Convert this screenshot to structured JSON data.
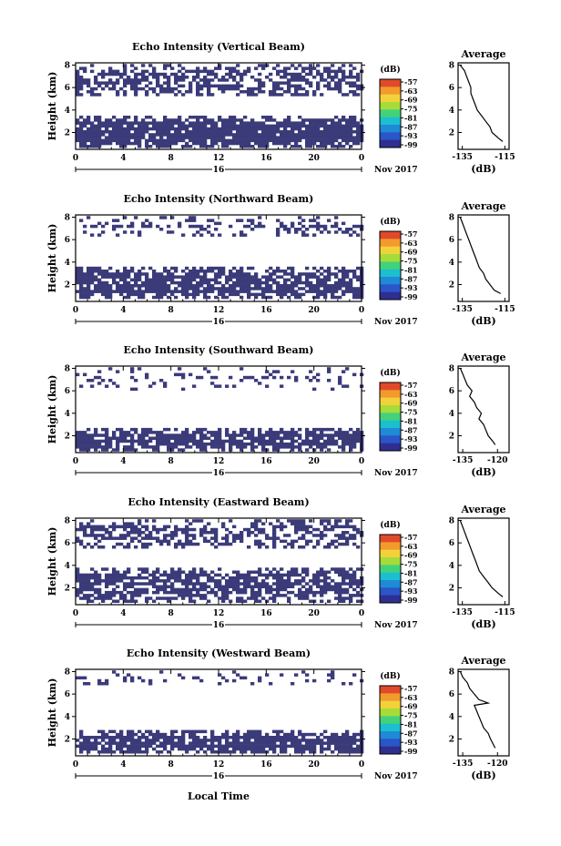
{
  "colors": {
    "echo": "#3b3b7a",
    "colorbar": [
      "#2e2f8f",
      "#2b55c8",
      "#1f8ad6",
      "#1cbfd0",
      "#43d27a",
      "#a6dc3a",
      "#f2d23a",
      "#f39a2c",
      "#e04a2a"
    ]
  },
  "x_label": "Local Time",
  "chart_data": [
    {
      "type": "heatmap",
      "title": "Echo Intensity (Vertical Beam)",
      "ylabel": "Height (km)",
      "x_ticks": [
        "0",
        "4",
        "8",
        "12",
        "16",
        "20",
        "0"
      ],
      "y_ticks": [
        "2",
        "4",
        "6",
        "8"
      ],
      "xlim": [
        0,
        24
      ],
      "ylim": [
        0.5,
        8.2
      ],
      "date_label": "16",
      "month_label": "Nov 2017",
      "colorbar_unit": "(dB)",
      "colorbar_ticks": [
        "-57",
        "-63",
        "-69",
        "-75",
        "-81",
        "-87",
        "-93",
        "-99"
      ],
      "echo_layers": [
        {
          "bottom": 0.8,
          "top": 3.5,
          "density": 0.9
        },
        {
          "bottom": 5.3,
          "top": 8.1,
          "density": 0.55
        }
      ],
      "average": {
        "title": "Average",
        "xlabel": "(dB)",
        "xticks": [
          "-135",
          "-115"
        ],
        "xlim": [
          -137,
          -113
        ],
        "yticks": [
          "2",
          "4",
          "6",
          "8"
        ],
        "ylim": [
          0.5,
          8.2
        ],
        "x": [
          -136,
          -134,
          -133,
          -132,
          -131,
          -131,
          -130,
          -129,
          -128,
          -126,
          -124,
          -122,
          -121,
          -118,
          -116
        ],
        "y": [
          8.0,
          7.5,
          7.0,
          6.5,
          6.0,
          5.5,
          5.0,
          4.5,
          4.0,
          3.5,
          3.0,
          2.5,
          2.0,
          1.5,
          1.2
        ]
      }
    },
    {
      "type": "heatmap",
      "title": "Echo Intensity (Northward Beam)",
      "ylabel": "Height (km)",
      "x_ticks": [
        "0",
        "4",
        "8",
        "12",
        "16",
        "20",
        "0"
      ],
      "y_ticks": [
        "2",
        "4",
        "6",
        "8"
      ],
      "xlim": [
        0,
        24
      ],
      "ylim": [
        0.5,
        8.2
      ],
      "date_label": "16",
      "month_label": "Nov 2017",
      "colorbar_unit": "(dB)",
      "colorbar_ticks": [
        "-57",
        "-63",
        "-69",
        "-75",
        "-81",
        "-87",
        "-93",
        "-99"
      ],
      "echo_layers": [
        {
          "bottom": 0.8,
          "top": 3.6,
          "density": 0.8
        },
        {
          "bottom": 6.3,
          "top": 8.1,
          "density": 0.3
        }
      ],
      "average": {
        "title": "Average",
        "xlabel": "(dB)",
        "xticks": [
          "-135",
          "-115"
        ],
        "xlim": [
          -137,
          -113
        ],
        "yticks": [
          "2",
          "4",
          "6",
          "8"
        ],
        "ylim": [
          0.5,
          8.2
        ],
        "x": [
          -136,
          -135,
          -134,
          -133,
          -132,
          -131,
          -130,
          -129,
          -128,
          -127,
          -125,
          -124,
          -122,
          -120,
          -117
        ],
        "y": [
          8.0,
          7.5,
          7.0,
          6.5,
          6.0,
          5.5,
          5.0,
          4.5,
          4.0,
          3.5,
          3.0,
          2.5,
          2.0,
          1.5,
          1.2
        ]
      }
    },
    {
      "type": "heatmap",
      "title": "Echo Intensity (Southward Beam)",
      "ylabel": "Height (km)",
      "x_ticks": [
        "0",
        "4",
        "8",
        "12",
        "16",
        "20",
        "0"
      ],
      "y_ticks": [
        "2",
        "4",
        "6",
        "8"
      ],
      "xlim": [
        0,
        24
      ],
      "ylim": [
        0.5,
        8.2
      ],
      "date_label": "16",
      "month_label": "Nov 2017",
      "colorbar_unit": "(dB)",
      "colorbar_ticks": [
        "-57",
        "-63",
        "-69",
        "-75",
        "-81",
        "-87",
        "-93",
        "-99"
      ],
      "echo_layers": [
        {
          "bottom": 0.8,
          "top": 2.7,
          "density": 0.85
        },
        {
          "bottom": 6.0,
          "top": 8.1,
          "density": 0.15
        }
      ],
      "average": {
        "title": "Average",
        "xlabel": "(dB)",
        "xticks": [
          "-135",
          "-120"
        ],
        "xlim": [
          -137,
          -115
        ],
        "yticks": [
          "2",
          "4",
          "6",
          "8"
        ],
        "ylim": [
          0.5,
          8.2
        ],
        "x": [
          -136,
          -135,
          -134,
          -133,
          -131,
          -132,
          -130,
          -129,
          -127,
          -128,
          -126,
          -125,
          -124,
          -122,
          -121
        ],
        "y": [
          8.0,
          7.5,
          7.0,
          6.5,
          6.0,
          5.5,
          5.0,
          4.5,
          4.0,
          3.5,
          3.0,
          2.5,
          2.0,
          1.5,
          1.2
        ]
      }
    },
    {
      "type": "heatmap",
      "title": "Echo Intensity (Eastward Beam)",
      "ylabel": "Height (km)",
      "x_ticks": [
        "0",
        "4",
        "8",
        "12",
        "16",
        "20",
        "0"
      ],
      "y_ticks": [
        "2",
        "4",
        "6",
        "8"
      ],
      "xlim": [
        0,
        24
      ],
      "ylim": [
        0.5,
        8.2
      ],
      "date_label": "16",
      "month_label": "Nov 2017",
      "colorbar_unit": "(dB)",
      "colorbar_ticks": [
        "-57",
        "-63",
        "-69",
        "-75",
        "-81",
        "-87",
        "-93",
        "-99"
      ],
      "echo_layers": [
        {
          "bottom": 0.8,
          "top": 3.8,
          "density": 0.7
        },
        {
          "bottom": 5.7,
          "top": 8.1,
          "density": 0.5
        }
      ],
      "average": {
        "title": "Average",
        "xlabel": "(dB)",
        "xticks": [
          "-135",
          "-115"
        ],
        "xlim": [
          -137,
          -113
        ],
        "yticks": [
          "2",
          "4",
          "6",
          "8"
        ],
        "ylim": [
          0.5,
          8.2
        ],
        "x": [
          -136,
          -135,
          -134,
          -133,
          -132,
          -131,
          -130,
          -129,
          -128,
          -127,
          -125,
          -123,
          -121,
          -118,
          -116
        ],
        "y": [
          8.0,
          7.5,
          7.0,
          6.5,
          6.0,
          5.5,
          5.0,
          4.5,
          4.0,
          3.5,
          3.0,
          2.5,
          2.0,
          1.5,
          1.2
        ]
      }
    },
    {
      "type": "heatmap",
      "title": "Echo Intensity (Westward Beam)",
      "ylabel": "Height (km)",
      "x_ticks": [
        "0",
        "4",
        "8",
        "12",
        "16",
        "20",
        "0"
      ],
      "y_ticks": [
        "2",
        "4",
        "6",
        "8"
      ],
      "xlim": [
        0,
        24
      ],
      "ylim": [
        0.5,
        8.2
      ],
      "date_label": "16",
      "month_label": "Nov 2017",
      "colorbar_unit": "(dB)",
      "colorbar_ticks": [
        "-57",
        "-63",
        "-69",
        "-75",
        "-81",
        "-87",
        "-93",
        "-99"
      ],
      "echo_layers": [
        {
          "bottom": 0.8,
          "top": 2.8,
          "density": 0.85
        },
        {
          "bottom": 6.8,
          "top": 8.1,
          "density": 0.2
        }
      ],
      "average": {
        "title": "Average",
        "xlabel": "(dB)",
        "xticks": [
          "-135",
          "-120"
        ],
        "xlim": [
          -137,
          -115
        ],
        "yticks": [
          "2",
          "4",
          "6",
          "8"
        ],
        "ylim": [
          0.5,
          8.2
        ],
        "x": [
          -136,
          -135,
          -133,
          -132,
          -130,
          -128,
          -124,
          -130,
          -129,
          -128,
          -127,
          -126,
          -124,
          -123,
          -121
        ],
        "y": [
          8.0,
          7.5,
          7.0,
          6.5,
          6.0,
          5.5,
          5.2,
          5.0,
          4.5,
          4.0,
          3.5,
          3.0,
          2.5,
          2.0,
          1.2
        ]
      }
    }
  ]
}
